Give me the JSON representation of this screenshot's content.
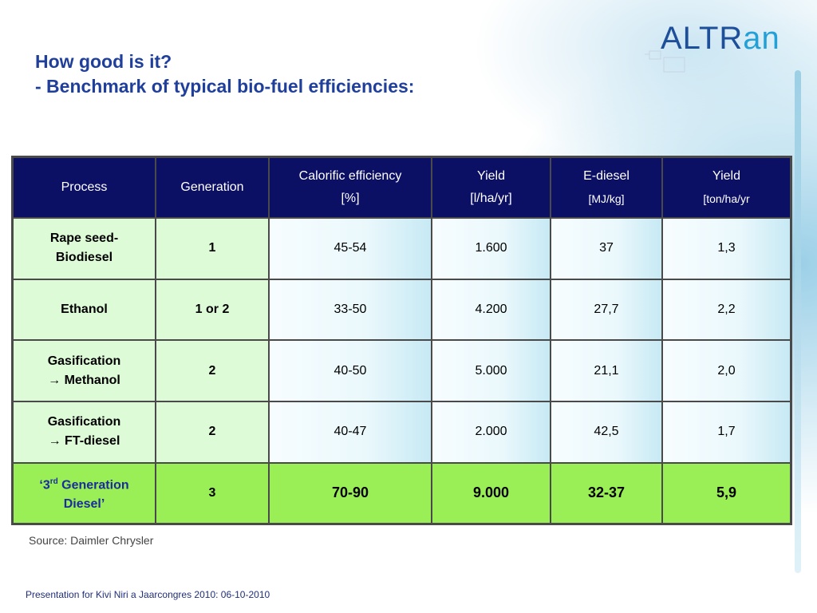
{
  "slide": {
    "title_line1": "How good is it?",
    "title_line2": "- Benchmark of typical bio-fuel efficiencies:",
    "logo_text_part1": "ALTR",
    "logo_text_part2": "an",
    "source": "Source: Daimler Chrysler",
    "footer": "Presentation for Kivi Niri a Jaarcongres 2010: 06-10-2010"
  },
  "table": {
    "headers": [
      {
        "line1": "Process",
        "line2": ""
      },
      {
        "line1": "Generation",
        "line2": ""
      },
      {
        "line1": "Calorific efficiency",
        "line2": "[%]"
      },
      {
        "line1": "Yield",
        "line2": "[l/ha/yr]"
      },
      {
        "line1": "E-diesel",
        "line2": "[MJ/kg]"
      },
      {
        "line1": "Yield",
        "line2": "[ton/ha/yr"
      }
    ],
    "rows": [
      {
        "process_1": "Rape seed-",
        "process_2": "Biodiesel",
        "gen_a": "1",
        "gen_or": "",
        "gen_b": "",
        "calorific": "45-54",
        "yield_l": "1.600",
        "ediesel": "37",
        "yield_t": "1,3"
      },
      {
        "process_1": "Ethanol",
        "process_2": "",
        "gen_a": "1",
        "gen_or": "or",
        "gen_b": "2",
        "calorific": "33-50",
        "yield_l": "4.200",
        "ediesel": "27,7",
        "yield_t": "2,2"
      },
      {
        "process_1": "Gasification",
        "process_2": "→ Methanol",
        "gen_a": "2",
        "gen_or": "",
        "gen_b": "",
        "calorific": "40-50",
        "yield_l": "5.000",
        "ediesel": "21,1",
        "yield_t": "2,0"
      },
      {
        "process_1": "Gasification",
        "process_2": "→ FT-diesel",
        "gen_a": "2",
        "gen_or": "",
        "gen_b": "",
        "calorific": "40-47",
        "yield_l": "2.000",
        "ediesel": "42,5",
        "yield_t": "1,7"
      },
      {
        "process_1a": "‘3",
        "process_1sup": "rd",
        "process_1b": " Generation",
        "process_2": "Diesel’",
        "gen_a": "3",
        "gen_or": "",
        "gen_b": "",
        "calorific": "70-90",
        "yield_l": "9.000",
        "ediesel": "32-37",
        "yield_t": "5,9"
      }
    ]
  },
  "colors": {
    "header_bg": "#0c1065",
    "process_cell_bg": "#ddfbd6",
    "highlight_row_bg": "#99ef55",
    "title_color": "#1f3f9a",
    "logo_blue": "#1d4f9a",
    "logo_cyan": "#22a0d8"
  }
}
